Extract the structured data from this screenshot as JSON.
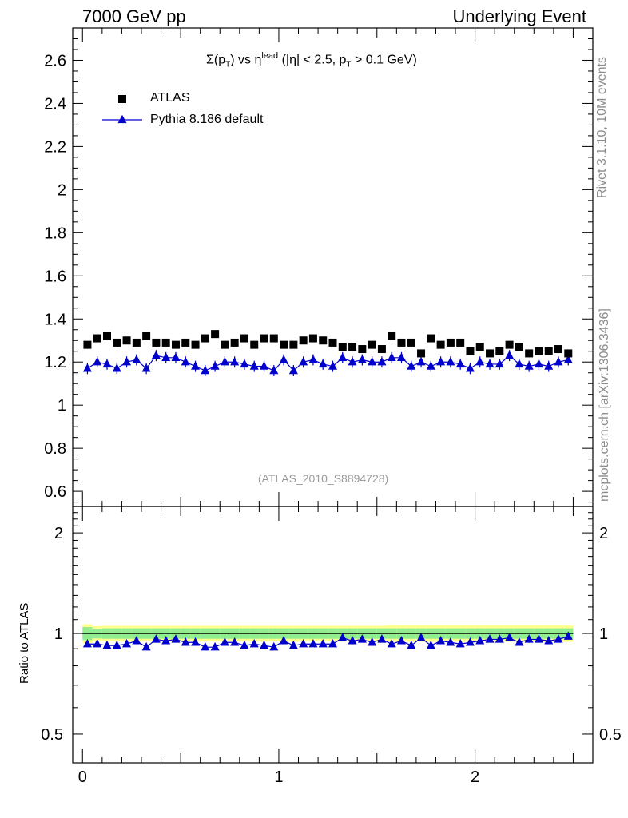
{
  "header": {
    "left": "7000 GeV pp",
    "right": "Underlying Event"
  },
  "side_labels": {
    "upper": "Rivet 3.1.10,  10M events",
    "lower": "mcplots.cern.ch [arXiv:1306.3436]"
  },
  "chart_data": [
    {
      "type": "scatter",
      "panel": "main",
      "title": "Σ(p_T) vs η^lead (|η| < 2.5, p_T > 0.1 GeV)",
      "title_parts": {
        "sigma": "Σ(p",
        "sub_t1": "T",
        "mid": ") vs η",
        "sup_lead": "lead",
        "tail1": " (|η| < 2.5, p",
        "sub_t2": "T",
        "tail2": " > 0.1 GeV)"
      },
      "analysis": "(ATLAS_2010_S8894728)",
      "xlim": [
        -0.05,
        2.6
      ],
      "ylim": [
        0.53,
        2.75
      ],
      "yticks": [
        0.6,
        0.8,
        1,
        1.2,
        1.4,
        1.6,
        1.8,
        2,
        2.2,
        2.4,
        2.6
      ],
      "ytick_labels": [
        "0.6",
        "0.8",
        "1",
        "1.2",
        "1.4",
        "1.6",
        "1.8",
        "2",
        "2.2",
        "2.4",
        "2.6"
      ],
      "x": [
        0.025,
        0.075,
        0.125,
        0.175,
        0.225,
        0.275,
        0.325,
        0.375,
        0.425,
        0.475,
        0.525,
        0.575,
        0.625,
        0.675,
        0.725,
        0.775,
        0.825,
        0.875,
        0.925,
        0.975,
        1.025,
        1.075,
        1.125,
        1.175,
        1.225,
        1.275,
        1.325,
        1.375,
        1.425,
        1.475,
        1.525,
        1.575,
        1.625,
        1.675,
        1.725,
        1.775,
        1.825,
        1.875,
        1.925,
        1.975,
        2.025,
        2.075,
        2.125,
        2.175,
        2.225,
        2.275,
        2.325,
        2.375,
        2.425,
        2.475
      ],
      "series": [
        {
          "name": "ATLAS",
          "marker": "square",
          "color": "#000000",
          "values": [
            1.28,
            1.31,
            1.32,
            1.29,
            1.3,
            1.29,
            1.32,
            1.29,
            1.29,
            1.28,
            1.29,
            1.28,
            1.31,
            1.33,
            1.28,
            1.29,
            1.31,
            1.28,
            1.31,
            1.31,
            1.28,
            1.28,
            1.3,
            1.31,
            1.3,
            1.29,
            1.27,
            1.27,
            1.26,
            1.28,
            1.26,
            1.32,
            1.29,
            1.29,
            1.24,
            1.31,
            1.28,
            1.29,
            1.29,
            1.25,
            1.27,
            1.24,
            1.25,
            1.28,
            1.27,
            1.24,
            1.25,
            1.25,
            1.26,
            1.24
          ]
        },
        {
          "name": "Pythia 8.186 default",
          "marker": "triangle",
          "color": "#0000cc",
          "values": [
            1.17,
            1.2,
            1.19,
            1.17,
            1.2,
            1.21,
            1.17,
            1.23,
            1.22,
            1.22,
            1.2,
            1.18,
            1.16,
            1.18,
            1.2,
            1.2,
            1.19,
            1.18,
            1.18,
            1.16,
            1.21,
            1.16,
            1.2,
            1.21,
            1.19,
            1.18,
            1.22,
            1.2,
            1.21,
            1.2,
            1.2,
            1.22,
            1.22,
            1.18,
            1.2,
            1.18,
            1.2,
            1.2,
            1.19,
            1.17,
            1.2,
            1.19,
            1.19,
            1.23,
            1.19,
            1.18,
            1.19,
            1.18,
            1.2,
            1.21
          ]
        }
      ]
    },
    {
      "type": "scatter",
      "panel": "ratio",
      "ylabel": "Ratio to ATLAS",
      "xlim": [
        -0.05,
        2.6
      ],
      "ylim": [
        0.41,
        2.4
      ],
      "log_y": true,
      "yticks": [
        0.5,
        1,
        2
      ],
      "ytick_labels": [
        "0.5",
        "1",
        "2"
      ],
      "xticks": [
        0,
        1,
        2
      ],
      "xtick_labels": [
        "0",
        "1",
        "2"
      ],
      "reference": 1.0,
      "band_inner_halfwidth": [
        0.045,
        0.034,
        0.036,
        0.036,
        0.036,
        0.036,
        0.036,
        0.036,
        0.036,
        0.036,
        0.036,
        0.036,
        0.036,
        0.036,
        0.036,
        0.036,
        0.036,
        0.036,
        0.036,
        0.036,
        0.036,
        0.036,
        0.036,
        0.036,
        0.036,
        0.036,
        0.036,
        0.036,
        0.036,
        0.036,
        0.036,
        0.036,
        0.036,
        0.036,
        0.036,
        0.036,
        0.036,
        0.036,
        0.036,
        0.036,
        0.036,
        0.036,
        0.036,
        0.036,
        0.036,
        0.036,
        0.036,
        0.036,
        0.036,
        0.036
      ],
      "band_outer_halfwidth": [
        0.065,
        0.052,
        0.054,
        0.054,
        0.054,
        0.054,
        0.054,
        0.054,
        0.054,
        0.054,
        0.054,
        0.054,
        0.054,
        0.054,
        0.054,
        0.054,
        0.054,
        0.054,
        0.054,
        0.054,
        0.054,
        0.054,
        0.054,
        0.054,
        0.054,
        0.054,
        0.054,
        0.054,
        0.054,
        0.054,
        0.054,
        0.056,
        0.056,
        0.056,
        0.056,
        0.056,
        0.056,
        0.056,
        0.056,
        0.056,
        0.056,
        0.056,
        0.056,
        0.056,
        0.056,
        0.056,
        0.056,
        0.056,
        0.056,
        0.056
      ],
      "band_colors": {
        "inner": "#90ee90",
        "outer": "#ffff8c"
      },
      "series": [
        {
          "name": "Pythia 8.186 default / ATLAS",
          "marker": "triangle",
          "color": "#0000cc",
          "values": [
            0.93,
            0.93,
            0.92,
            0.92,
            0.93,
            0.95,
            0.91,
            0.96,
            0.95,
            0.96,
            0.94,
            0.94,
            0.91,
            0.91,
            0.94,
            0.94,
            0.92,
            0.93,
            0.92,
            0.91,
            0.95,
            0.92,
            0.93,
            0.93,
            0.93,
            0.93,
            0.97,
            0.95,
            0.96,
            0.94,
            0.96,
            0.93,
            0.95,
            0.92,
            0.97,
            0.92,
            0.95,
            0.94,
            0.93,
            0.94,
            0.95,
            0.96,
            0.96,
            0.97,
            0.94,
            0.96,
            0.96,
            0.95,
            0.96,
            0.98
          ]
        }
      ]
    }
  ]
}
